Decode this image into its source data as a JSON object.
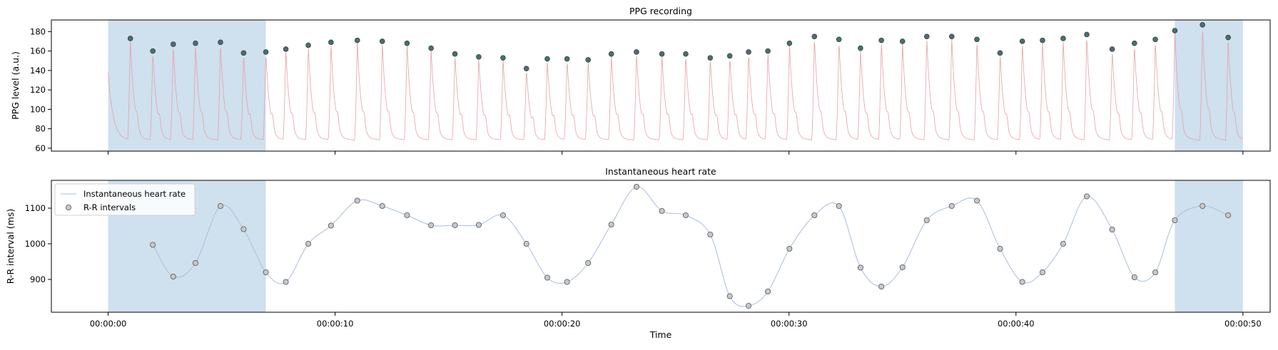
{
  "chart_data": [
    {
      "type": "line",
      "title": "PPG recording",
      "xlabel": "",
      "ylabel": "PPG level (a.u.)",
      "xlim": [
        -2.5,
        51.2
      ],
      "ylim": [
        57,
        192
      ],
      "yticks": [
        60,
        80,
        100,
        120,
        140,
        160,
        180
      ],
      "shaded_regions": [
        [
          0,
          6.95
        ],
        [
          47.0,
          50.0
        ]
      ],
      "colors": {
        "signal": "#e8a0a6",
        "peaks": "#4d6e6e",
        "shade": "#cfe0ef"
      },
      "signal": {
        "start": 0.0,
        "end": 50.0,
        "baseline": 68,
        "initial_value": 138,
        "final_value": 68,
        "beat_times": [
          0.98,
          1.97,
          2.87,
          3.85,
          4.95,
          5.97,
          6.95,
          7.83,
          8.82,
          9.82,
          10.98,
          12.08,
          13.17,
          14.23,
          15.28,
          16.33,
          17.4,
          18.43,
          19.35,
          20.22,
          21.15,
          22.17,
          23.28,
          24.4,
          25.45,
          26.53,
          27.39,
          28.22,
          29.07,
          30.02,
          31.12,
          32.2,
          33.15,
          34.07,
          35.0,
          36.07,
          37.17,
          38.28,
          39.3,
          40.28,
          41.17,
          42.08,
          43.12,
          44.24,
          45.22,
          46.14,
          47.0,
          48.22,
          49.35
        ],
        "peak_values": [
          173,
          160,
          167,
          168,
          169,
          158,
          159,
          162,
          166,
          169,
          171,
          170,
          168,
          163,
          157,
          154,
          153,
          142,
          152,
          152,
          151,
          157,
          159,
          157,
          157,
          153,
          155,
          159,
          160,
          168,
          175,
          172,
          163,
          171,
          170,
          175,
          175,
          172,
          158,
          170,
          171,
          173,
          177,
          162,
          168,
          172,
          181,
          187,
          174
        ]
      },
      "peaks": {
        "x": [
          0.98,
          1.97,
          2.87,
          3.85,
          4.95,
          5.97,
          6.95,
          7.83,
          8.82,
          9.82,
          10.98,
          12.08,
          13.17,
          14.23,
          15.28,
          16.33,
          17.4,
          18.43,
          19.35,
          20.22,
          21.15,
          22.17,
          23.28,
          24.4,
          25.45,
          26.53,
          27.39,
          28.22,
          29.07,
          30.02,
          31.12,
          32.2,
          33.15,
          34.07,
          35.0,
          36.07,
          37.17,
          38.28,
          39.3,
          40.28,
          41.17,
          42.08,
          43.12,
          44.24,
          45.22,
          46.14,
          47.0,
          48.22,
          49.35
        ],
        "y": [
          173,
          160,
          167,
          168,
          169,
          158,
          159,
          162,
          166,
          169,
          171,
          170,
          168,
          163,
          157,
          154,
          153,
          142,
          152,
          152,
          151,
          157,
          159,
          157,
          157,
          153,
          155,
          159,
          160,
          168,
          175,
          172,
          163,
          171,
          170,
          175,
          175,
          172,
          158,
          170,
          171,
          173,
          177,
          162,
          168,
          172,
          181,
          187,
          174
        ]
      }
    },
    {
      "type": "line",
      "title": "Instantaneous heart rate",
      "xlabel": "Time",
      "ylabel": "R-R interval (ms)",
      "xlim": [
        -2.5,
        51.2
      ],
      "ylim": [
        808,
        1178
      ],
      "yticks": [
        900,
        1000,
        1100
      ],
      "xticks": [
        {
          "value": 0,
          "label": "00:00:00"
        },
        {
          "value": 10,
          "label": "00:00:10"
        },
        {
          "value": 20,
          "label": "00:00:20"
        },
        {
          "value": 30,
          "label": "00:00:30"
        },
        {
          "value": 40,
          "label": "00:00:40"
        },
        {
          "value": 50,
          "label": "00:00:50"
        }
      ],
      "shaded_regions": [
        [
          0,
          6.95
        ],
        [
          47.0,
          50.0
        ]
      ],
      "legend_position": "top-left",
      "colors": {
        "line": "#a8bede",
        "points_fill": "#c8c8c8",
        "points_edge": "#555555",
        "shade": "#cfe0ef"
      },
      "series": [
        {
          "name": "Instantaneous heart rate",
          "x": [
            1.97,
            2.87,
            3.85,
            4.95,
            5.97,
            6.95,
            7.83,
            8.82,
            9.82,
            10.98,
            12.08,
            13.17,
            14.23,
            15.28,
            16.33,
            17.4,
            18.43,
            19.35,
            20.22,
            21.15,
            22.17,
            23.28,
            24.4,
            25.45,
            26.53,
            27.39,
            28.22,
            29.07,
            30.02,
            31.12,
            32.2,
            33.15,
            34.07,
            35.0,
            36.07,
            37.17,
            38.28,
            39.3,
            40.28,
            41.17,
            42.08,
            43.12,
            44.24,
            45.22,
            46.14,
            47.0,
            48.22,
            49.35
          ],
          "y": [
            997,
            908,
            946,
            1106,
            1041,
            920,
            893,
            1000,
            1051,
            1121,
            1106,
            1080,
            1052,
            1052,
            1053,
            1080,
            1000,
            905,
            893,
            946,
            1054,
            1160,
            1092,
            1080,
            1026,
            853,
            826,
            866,
            986,
            1080,
            1106,
            933,
            880,
            934,
            1066,
            1106,
            1121,
            986,
            893,
            920,
            1000,
            1133,
            1040,
            906,
            920,
            1066,
            1106,
            1080
          ]
        },
        {
          "name": "R-R intervals",
          "x": [
            1.97,
            2.87,
            3.85,
            4.95,
            5.97,
            6.95,
            7.83,
            8.82,
            9.82,
            10.98,
            12.08,
            13.17,
            14.23,
            15.28,
            16.33,
            17.4,
            18.43,
            19.35,
            20.22,
            21.15,
            22.17,
            23.28,
            24.4,
            25.45,
            26.53,
            27.39,
            28.22,
            29.07,
            30.02,
            31.12,
            32.2,
            33.15,
            34.07,
            35.0,
            36.07,
            37.17,
            38.28,
            39.3,
            40.28,
            41.17,
            42.08,
            43.12,
            44.24,
            45.22,
            46.14,
            47.0,
            48.22,
            49.35
          ],
          "y": [
            997,
            908,
            946,
            1106,
            1041,
            920,
            893,
            1000,
            1051,
            1121,
            1106,
            1080,
            1052,
            1052,
            1053,
            1080,
            1000,
            905,
            893,
            946,
            1054,
            1160,
            1092,
            1080,
            1026,
            853,
            826,
            866,
            986,
            1080,
            1106,
            933,
            880,
            934,
            1066,
            1106,
            1121,
            986,
            893,
            920,
            1000,
            1133,
            1040,
            906,
            920,
            1066,
            1106,
            1080
          ]
        }
      ]
    }
  ]
}
